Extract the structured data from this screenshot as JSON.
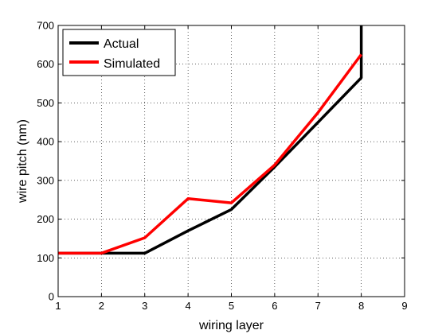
{
  "chart_data": {
    "type": "line",
    "xlabel": "wiring layer",
    "ylabel": "wire pitch (nm)",
    "xlim": [
      1,
      9
    ],
    "ylim": [
      0,
      700
    ],
    "xticks": [
      1,
      2,
      3,
      4,
      5,
      6,
      7,
      8,
      9
    ],
    "yticks": [
      0,
      100,
      200,
      300,
      400,
      500,
      600,
      700
    ],
    "grid": true,
    "legend_position": "top-left",
    "series": [
      {
        "name": "Actual",
        "color": "#000000",
        "points": [
          [
            1,
            112
          ],
          [
            2,
            112
          ],
          [
            3,
            112
          ],
          [
            4,
            170
          ],
          [
            5,
            225
          ],
          [
            6,
            335
          ],
          [
            7,
            450
          ],
          [
            8,
            565
          ],
          [
            8,
            700
          ]
        ]
      },
      {
        "name": "Simulated",
        "color": "#ff0000",
        "points": [
          [
            1,
            112
          ],
          [
            2,
            112
          ],
          [
            3,
            152
          ],
          [
            4,
            253
          ],
          [
            5,
            242
          ],
          [
            6,
            340
          ],
          [
            7,
            475
          ],
          [
            8,
            625
          ]
        ]
      }
    ]
  }
}
